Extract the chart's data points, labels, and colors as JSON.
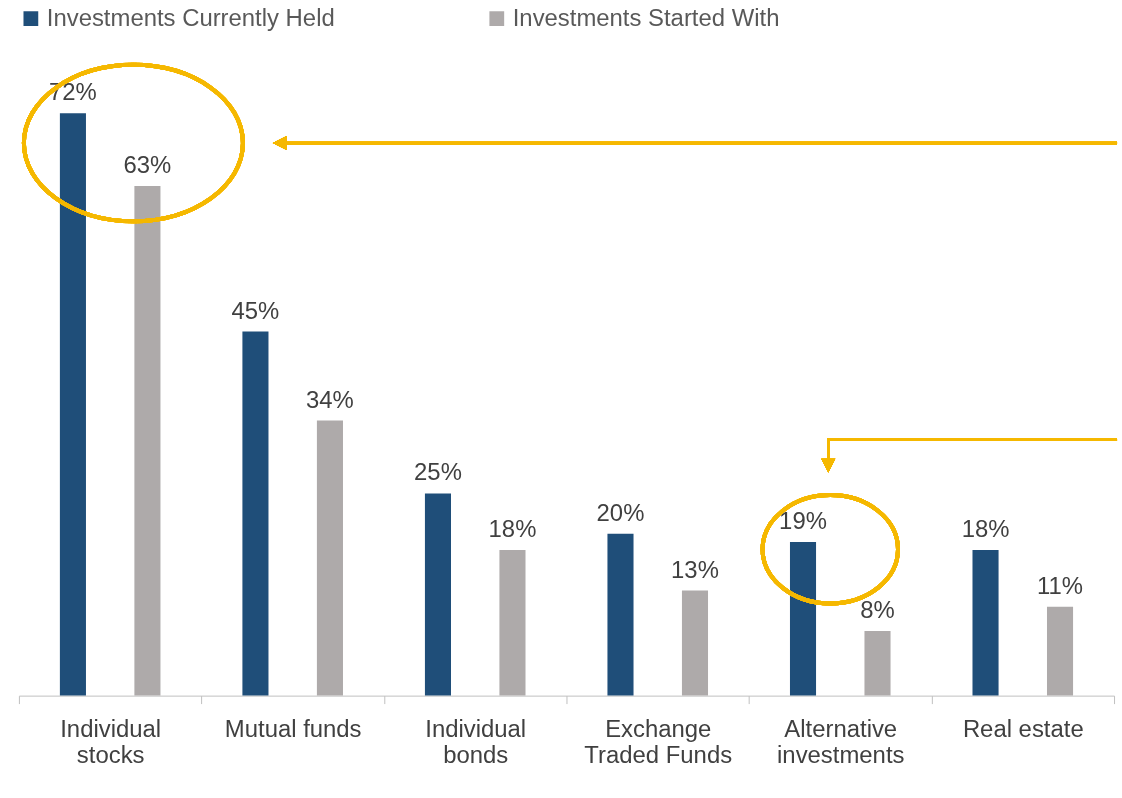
{
  "chart_data": {
    "type": "bar",
    "legend": "top",
    "categories": [
      "Individual stocks",
      "Mutual funds",
      "Individual bonds",
      "Exchange Traded Funds",
      "Alternative investments",
      "Real estate"
    ],
    "series": [
      {
        "name": "Investments Currently Held",
        "color": "#1f4e79",
        "values": [
          72,
          45,
          25,
          20,
          19,
          18
        ],
        "value_labels": [
          "72%",
          "45%",
          "25%",
          "20%",
          "19%",
          "18%"
        ]
      },
      {
        "name": "Investments Started With",
        "color": "#aeaaaa",
        "values": [
          63,
          34,
          18,
          13,
          8,
          11
        ],
        "value_labels": [
          "63%",
          "34%",
          "18%",
          "13%",
          "8%",
          "11%"
        ]
      }
    ]
  }
}
